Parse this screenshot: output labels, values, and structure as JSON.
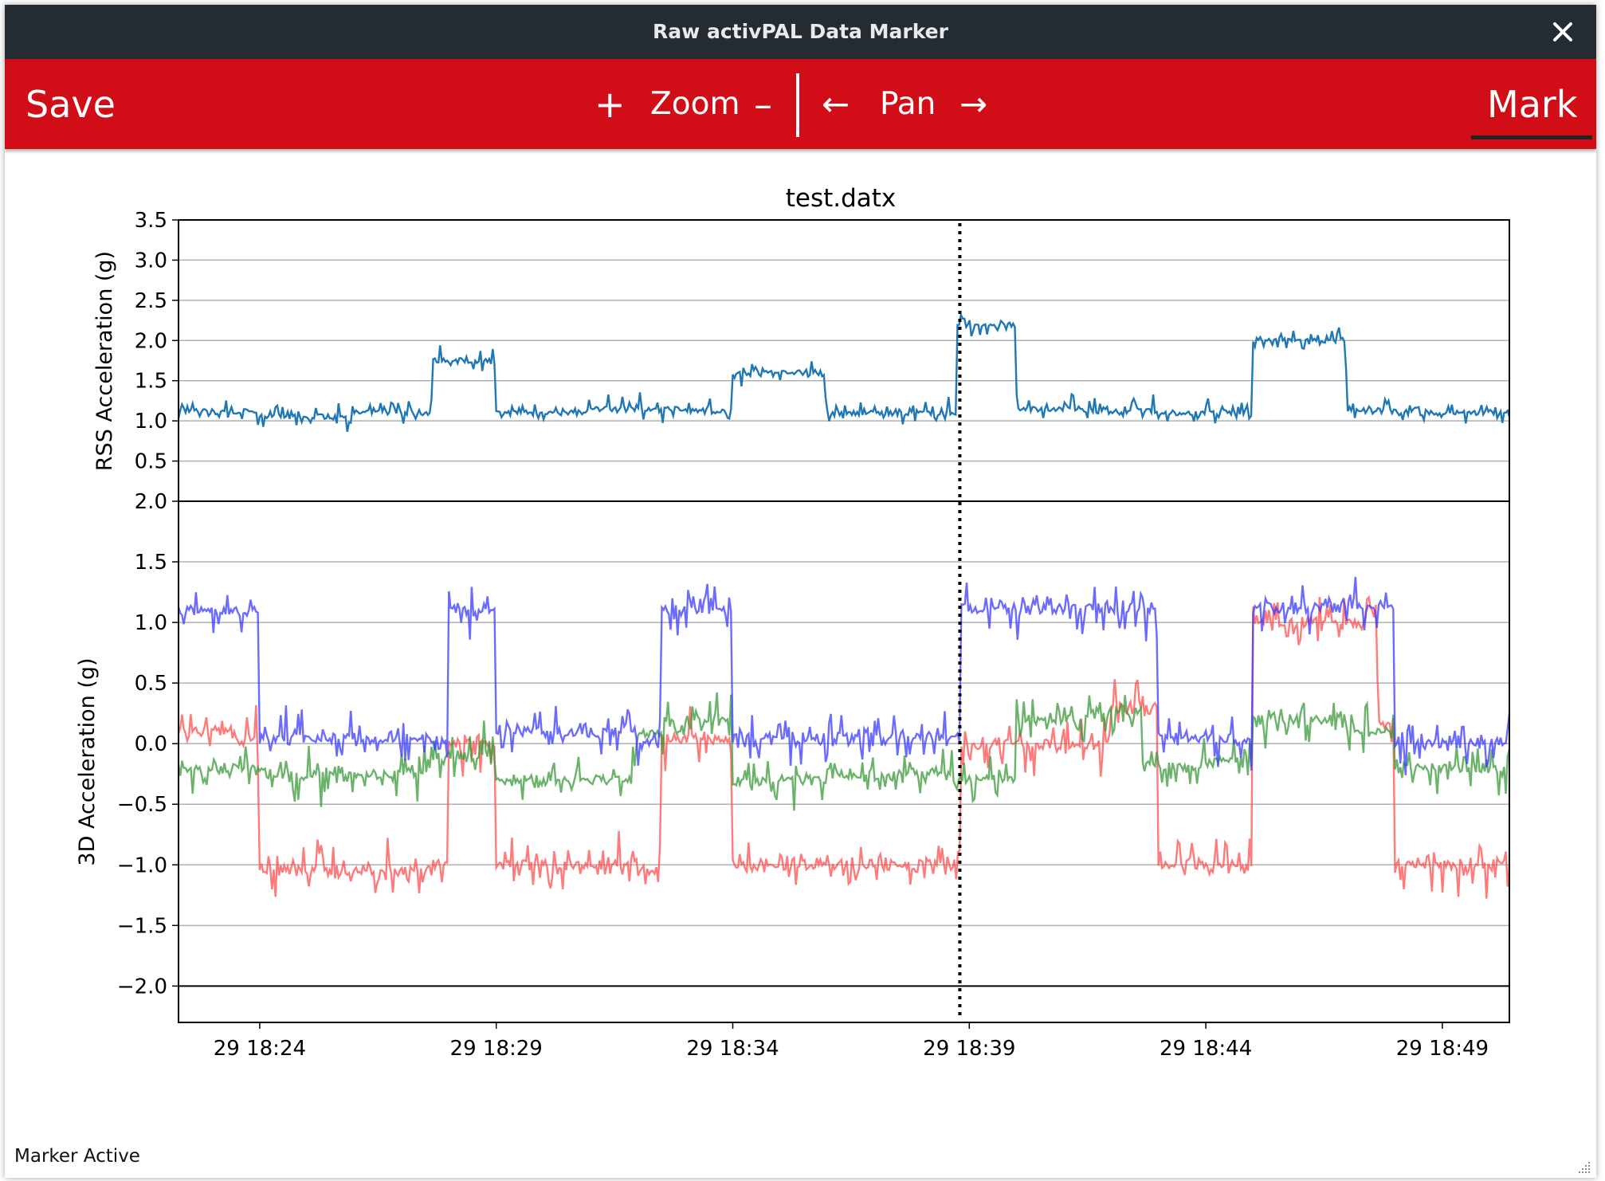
{
  "window": {
    "title": "Raw activPAL Data Marker"
  },
  "toolbar": {
    "save_label": "Save",
    "zoom_in": "+",
    "zoom_label": "Zoom",
    "zoom_out": "–",
    "pan_left": "←",
    "pan_label": "Pan",
    "pan_right": "→",
    "mark_label": "Mark"
  },
  "status": {
    "text": "Marker Active"
  },
  "colors": {
    "titlebar": "#242b31",
    "toolbar": "#d10e17",
    "rss": "#1f77b4",
    "x": "#ff4d4d",
    "y": "#3a9a3a",
    "z": "#3a3aff"
  },
  "chart_data": [
    {
      "type": "line",
      "title": "test.datx",
      "ylabel": "RSS Acceleration (g)",
      "ylim": [
        0,
        3.5
      ],
      "yticks": [
        "0.5",
        "1.0",
        "1.5",
        "2.0",
        "2.5",
        "3.0",
        "3.5"
      ],
      "grid": true,
      "x_range": [
        "29 18:22:17",
        "29 18:50:25"
      ],
      "marker_line_x": "29 18:38:48",
      "series": [
        {
          "color": "#1f77b4",
          "x": [
            "18:22:17",
            "18:24:00",
            "18:26:00",
            "18:27:40",
            "18:29:00",
            "18:31:00",
            "18:33:00",
            "18:34:00",
            "18:36:00",
            "18:38:00",
            "18:38:45",
            "18:40:00",
            "18:41:30",
            "18:43:00",
            "18:44:50",
            "18:45:00",
            "18:47:00",
            "18:48:30",
            "18:50:25"
          ],
          "values": [
            1.12,
            1.05,
            1.1,
            1.75,
            1.1,
            1.15,
            1.12,
            1.6,
            1.1,
            1.1,
            2.2,
            1.15,
            1.12,
            1.1,
            1.05,
            2.0,
            1.12,
            1.1,
            1.05
          ]
        }
      ]
    },
    {
      "type": "line",
      "ylabel": "3D Acceleration (g)",
      "ylim": [
        -2.3,
        2.0
      ],
      "yticks": [
        "−2.0",
        "−1.5",
        "−1.0",
        "−0.5",
        "0.0",
        "0.5",
        "1.0",
        "1.5",
        "2.0"
      ],
      "xticks": [
        "29 18:24",
        "29 18:29",
        "29 18:34",
        "29 18:39",
        "29 18:44",
        "29 18:49"
      ],
      "grid": true,
      "marker_line_x": "29 18:38:48",
      "series": [
        {
          "color": "#ff4d4d",
          "x": [
            "18:22:17",
            "18:23:30",
            "18:24:00",
            "18:27:40",
            "18:28:00",
            "18:29:00",
            "18:32:00",
            "18:32:30",
            "18:34:00",
            "18:36:00",
            "18:38:30",
            "18:38:50",
            "18:40:00",
            "18:42:00",
            "18:43:00",
            "18:44:40",
            "18:45:00",
            "18:47:40",
            "18:48:00",
            "18:50:25"
          ],
          "values": [
            0.1,
            0.05,
            -1.05,
            -1.0,
            0.0,
            -1.0,
            -1.05,
            0.05,
            -1.0,
            -1.0,
            -1.0,
            0.0,
            0.0,
            0.3,
            -1.0,
            -1.05,
            1.0,
            0.2,
            -1.0,
            -1.0
          ]
        },
        {
          "color": "#3a9a3a",
          "x": [
            "18:22:17",
            "18:24:00",
            "18:27:40",
            "18:29:00",
            "18:32:00",
            "18:33:00",
            "18:34:00",
            "18:36:00",
            "18:38:40",
            "18:40:00",
            "18:41:30",
            "18:42:40",
            "18:44:00",
            "18:45:00",
            "18:47:00",
            "18:48:00",
            "18:50:25"
          ],
          "values": [
            -0.2,
            -0.25,
            -0.1,
            -0.3,
            0.1,
            0.2,
            -0.3,
            -0.25,
            -0.3,
            0.2,
            0.25,
            -0.2,
            -0.15,
            0.2,
            0.1,
            -0.2,
            -0.05
          ]
        },
        {
          "color": "#3a3aff",
          "x": [
            "18:22:17",
            "18:23:30",
            "18:24:00",
            "18:27:40",
            "18:28:00",
            "18:29:00",
            "18:32:00",
            "18:32:30",
            "18:33:30",
            "18:34:00",
            "18:36:00",
            "18:38:40",
            "18:38:50",
            "18:40:30",
            "18:41:30",
            "18:43:00",
            "18:44:40",
            "18:45:00",
            "18:47:30",
            "18:48:00",
            "18:50:25"
          ],
          "values": [
            1.1,
            1.1,
            0.05,
            0.0,
            1.1,
            0.1,
            0.0,
            1.12,
            1.1,
            0.05,
            0.05,
            0.05,
            1.12,
            1.12,
            1.12,
            0.05,
            0.0,
            1.12,
            1.1,
            0.0,
            0.25
          ]
        }
      ]
    }
  ]
}
